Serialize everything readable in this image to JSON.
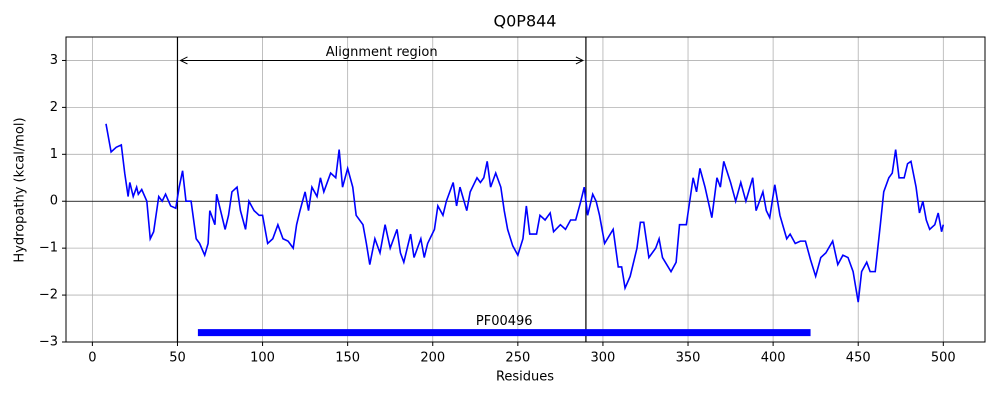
{
  "chart_data": {
    "type": "line",
    "title": "Q0P844",
    "xlabel": "Residues",
    "ylabel": "Hydropathy (kcal/mol)",
    "x": [
      8,
      11,
      14,
      17,
      19,
      21,
      22,
      24,
      26,
      27,
      29,
      32,
      34,
      36,
      39,
      41,
      43,
      46,
      49,
      51,
      53,
      55,
      58,
      61,
      63,
      66,
      68,
      69,
      72,
      73,
      76,
      78,
      80,
      82,
      85,
      87,
      90,
      92,
      95,
      98,
      100,
      103,
      106,
      109,
      112,
      115,
      118,
      120,
      122,
      125,
      127,
      129,
      132,
      134,
      136,
      140,
      143,
      145,
      147,
      150,
      153,
      155,
      159,
      161,
      163,
      166,
      169,
      172,
      175,
      179,
      181,
      183,
      187,
      189,
      193,
      195,
      197,
      201,
      203,
      206,
      208,
      212,
      214,
      216,
      220,
      222,
      226,
      228,
      230,
      232,
      234,
      237,
      240,
      242,
      244,
      247,
      250,
      253,
      255,
      257,
      261,
      263,
      266,
      269,
      271,
      275,
      278,
      281,
      284,
      287,
      289,
      291,
      294,
      296,
      298,
      301,
      306,
      309,
      311,
      313,
      316,
      320,
      322,
      324,
      327,
      331,
      333,
      335,
      340,
      343,
      345,
      349,
      353,
      355,
      357,
      360,
      364,
      367,
      369,
      371,
      375,
      378,
      381,
      384,
      388,
      390,
      394,
      396,
      398,
      401,
      404,
      408,
      410,
      413,
      416,
      419,
      422,
      425,
      428,
      431,
      435,
      438,
      441,
      444,
      447,
      450,
      452,
      455,
      457,
      460,
      463,
      465,
      468,
      470,
      472,
      474,
      477,
      479,
      481,
      484,
      486,
      488,
      490,
      492,
      495,
      497,
      499,
      500
    ],
    "values": [
      1.65,
      1.05,
      1.15,
      1.2,
      0.6,
      0.1,
      0.4,
      0.1,
      0.3,
      0.15,
      0.25,
      0.0,
      -0.8,
      -0.65,
      0.1,
      0.0,
      0.15,
      -0.1,
      -0.15,
      0.3,
      0.65,
      0.0,
      0.0,
      -0.8,
      -0.9,
      -1.15,
      -0.9,
      -0.2,
      -0.5,
      0.15,
      -0.3,
      -0.6,
      -0.3,
      0.2,
      0.3,
      -0.2,
      -0.6,
      0.0,
      -0.2,
      -0.3,
      -0.3,
      -0.9,
      -0.8,
      -0.5,
      -0.8,
      -0.85,
      -1.0,
      -0.5,
      -0.2,
      0.2,
      -0.2,
      0.3,
      0.1,
      0.5,
      0.2,
      0.6,
      0.5,
      1.1,
      0.3,
      0.7,
      0.3,
      -0.3,
      -0.5,
      -0.9,
      -1.35,
      -0.8,
      -1.1,
      -0.5,
      -1.0,
      -0.6,
      -1.1,
      -1.3,
      -0.7,
      -1.2,
      -0.8,
      -1.2,
      -0.9,
      -0.6,
      -0.1,
      -0.3,
      0.0,
      0.4,
      -0.1,
      0.3,
      -0.2,
      0.2,
      0.5,
      0.4,
      0.5,
      0.85,
      0.3,
      0.6,
      0.3,
      -0.2,
      -0.6,
      -0.95,
      -1.15,
      -0.8,
      -0.1,
      -0.7,
      -0.7,
      -0.3,
      -0.4,
      -0.25,
      -0.65,
      -0.5,
      -0.6,
      -0.4,
      -0.4,
      0.0,
      0.3,
      -0.3,
      0.15,
      0.0,
      -0.3,
      -0.9,
      -0.6,
      -1.4,
      -1.4,
      -1.85,
      -1.6,
      -1.0,
      -0.45,
      -0.45,
      -1.2,
      -1.0,
      -0.8,
      -1.2,
      -1.5,
      -1.3,
      -0.5,
      -0.5,
      0.5,
      0.2,
      0.7,
      0.3,
      -0.35,
      0.5,
      0.3,
      0.85,
      0.4,
      0.0,
      0.4,
      0.0,
      0.5,
      -0.2,
      0.2,
      -0.2,
      -0.35,
      0.35,
      -0.3,
      -0.8,
      -0.7,
      -0.9,
      -0.85,
      -0.85,
      -1.25,
      -1.6,
      -1.2,
      -1.1,
      -0.85,
      -1.35,
      -1.15,
      -1.2,
      -1.5,
      -2.15,
      -1.5,
      -1.3,
      -1.5,
      -1.5,
      -0.5,
      0.2,
      0.5,
      0.6,
      1.1,
      0.5,
      0.5,
      0.8,
      0.85,
      0.3,
      -0.25,
      0.0,
      -0.4,
      -0.6,
      -0.5,
      -0.25,
      -0.65,
      -0.5
    ],
    "color": "#0000ff",
    "xlim": [
      -15.5,
      524.5
    ],
    "ylim": [
      -3,
      3.5
    ],
    "xticks": [
      0,
      50,
      100,
      150,
      200,
      250,
      300,
      350,
      400,
      450,
      500
    ],
    "yticks": [
      {
        "value": -3,
        "label": "−3"
      },
      {
        "value": -2,
        "label": "−2"
      },
      {
        "value": -1,
        "label": "−1"
      },
      0,
      1,
      2,
      3
    ],
    "grid": true,
    "hline": 0,
    "vlines": [
      50,
      290
    ],
    "region_label": "Alignment region",
    "region_y": 3,
    "domains": [
      {
        "name": "PF00496",
        "start": 62,
        "end": 422,
        "y": -2.8,
        "color": "#0000ff"
      }
    ]
  }
}
